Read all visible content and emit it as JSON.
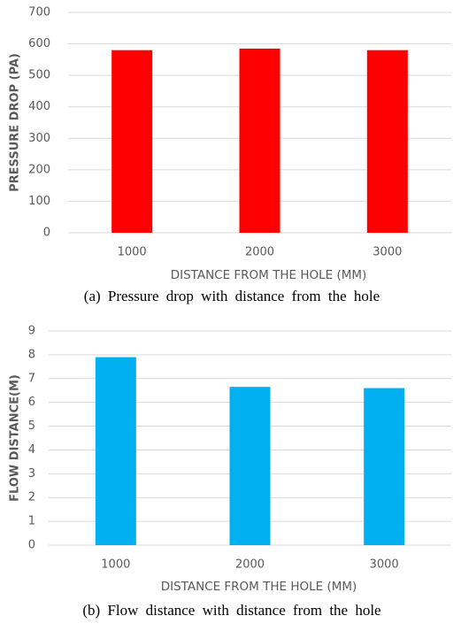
{
  "chart_data": [
    {
      "type": "bar",
      "ylabel": "PRESSURE DROP (PA)",
      "xlabel": "DISTANCE FROM THE HOLE (MM)",
      "caption": "(a) Pressure drop with distance from the hole",
      "categories": [
        "1000",
        "2000",
        "3000"
      ],
      "values": [
        580,
        585,
        580
      ],
      "color": "#ff0000",
      "ylim": [
        0,
        700
      ],
      "yticks": [
        0,
        100,
        200,
        300,
        400,
        500,
        600,
        700
      ],
      "grid": true
    },
    {
      "type": "bar",
      "ylabel": "FLOW DISTANCE(M)",
      "xlabel": "DISTANCE FROM THE HOLE (MM)",
      "caption": "(b) Flow distance with distance from the hole",
      "categories": [
        "1000",
        "2000",
        "3000"
      ],
      "values": [
        7.9,
        6.65,
        6.6
      ],
      "color": "#00b0f0",
      "ylim": [
        0,
        9
      ],
      "yticks": [
        0,
        1,
        2,
        3,
        4,
        5,
        6,
        7,
        8,
        9
      ],
      "grid": true
    }
  ]
}
